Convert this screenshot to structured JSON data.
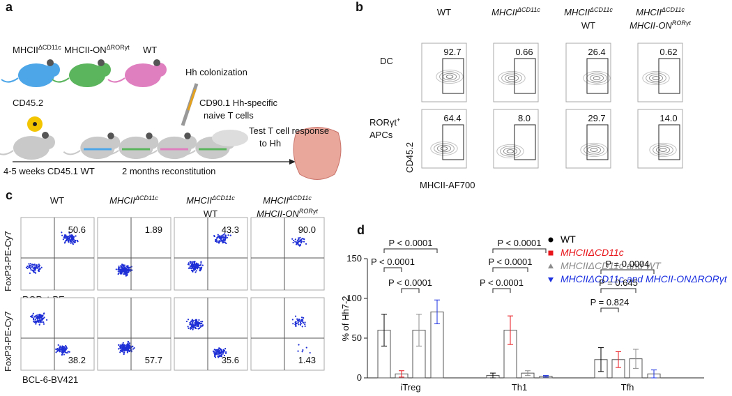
{
  "panels": {
    "a": {
      "label": "a",
      "mice": [
        [
          [
            {
              "text": "MHCII"
            },
            {
              "text": "ΔCD11c",
              "sup": true
            }
          ]
        ],
        [
          [
            {
              "text": "MHCII-ON"
            },
            {
              "text": "ΔRORγt",
              "sup": true
            }
          ]
        ],
        [
          [
            {
              "text": "WT"
            }
          ]
        ]
      ],
      "donor": "CD45.2",
      "colonization": "Hh colonization",
      "tcells": [
        "CD90.1  Hh-specific",
        "naive T cells"
      ],
      "test": [
        "Test  T cell response",
        "to Hh"
      ],
      "recipient": "4-5 weeks CD45.1 WT",
      "reconstitution": "2 months reconstitution"
    },
    "b": {
      "label": "b",
      "columns": [
        [
          [
            {
              "text": "WT"
            }
          ]
        ],
        [
          [
            {
              "text": "MHCII",
              "italic": true
            },
            {
              "text": "ΔCD11c",
              "sup": true,
              "italic": true
            }
          ]
        ],
        [
          [
            {
              "text": "MHCII",
              "italic": true
            },
            {
              "text": "ΔCD11c",
              "sup": true,
              "italic": true
            }
          ],
          [
            {
              "text": "WT"
            }
          ]
        ],
        [
          [
            {
              "text": "MHCII",
              "italic": true
            },
            {
              "text": "ΔCD11c",
              "sup": true,
              "italic": true
            }
          ],
          [
            {
              "text": "MHCII-ON",
              "italic": true
            },
            {
              "text": "RORγt",
              "sup": true,
              "italic": true
            }
          ]
        ]
      ],
      "rows": [
        {
          "label": [
            [
              {
                "text": "DC"
              }
            ]
          ],
          "values": [
            "92.7",
            "0.66",
            "26.4",
            "0.62"
          ]
        },
        {
          "label": [
            [
              {
                "text": "RORγt"
              },
              {
                "text": "+",
                "sup": true
              }
            ],
            [
              {
                "text": "APCs"
              }
            ]
          ],
          "values": [
            "64.4",
            "8.0",
            "29.7",
            "14.0"
          ]
        }
      ],
      "ylabel": "CD45.2",
      "xlabel": "MHCII-AF700"
    },
    "c": {
      "label": "c",
      "columns": [
        [
          [
            {
              "text": "WT"
            }
          ]
        ],
        [
          [
            {
              "text": "MHCII",
              "italic": true
            },
            {
              "text": "ΔCD11c",
              "sup": true,
              "italic": true
            }
          ]
        ],
        [
          [
            {
              "text": "MHCII",
              "italic": true
            },
            {
              "text": "ΔCD11c",
              "sup": true,
              "italic": true
            }
          ],
          [
            {
              "text": "WT"
            }
          ]
        ],
        [
          [
            {
              "text": "MHCII",
              "italic": true
            },
            {
              "text": "ΔCD11c",
              "sup": true,
              "italic": true
            }
          ],
          [
            {
              "text": "MHCII-ON",
              "italic": true
            },
            {
              "text": "RORγt",
              "sup": true,
              "italic": true
            }
          ]
        ]
      ],
      "rows": [
        {
          "ylabel": "FoxP3-PE-Cy7",
          "xlabel": "RORγt-PE",
          "values": [
            "50.6",
            "1.89",
            "43.3",
            "90.0"
          ]
        },
        {
          "ylabel": "FoxP3-PE-Cy7",
          "xlabel": "BCL-6-BV421",
          "values": [
            "38.2",
            "57.7",
            "35.6",
            "1.43"
          ]
        }
      ]
    },
    "d": {
      "label": "d"
    }
  },
  "chart_data": {
    "type": "bar",
    "ylabel": "% of Hh7-2",
    "categories": [
      "iTreg",
      "Th1",
      "Tfh"
    ],
    "series": [
      {
        "name": "WT",
        "color": "#000000",
        "values": [
          60,
          3,
          23
        ],
        "errors": [
          20,
          3,
          15
        ]
      },
      {
        "name": "MHCIIΔCD11c",
        "color": "#e8161b",
        "values": [
          5,
          60,
          23
        ],
        "errors": [
          4,
          18,
          10
        ]
      },
      {
        "name": "MHCIIΔCD11c and WT",
        "color": "#8c8c8c",
        "values": [
          60,
          6,
          24
        ],
        "errors": [
          20,
          3,
          12
        ]
      },
      {
        "name": "MHCIIΔCD11c and MHCII-ONΔRORγt",
        "color": "#1a2fe0",
        "values": [
          83,
          2,
          5
        ],
        "errors": [
          15,
          1,
          5
        ]
      }
    ],
    "ylim": [
      0,
      150
    ],
    "yticks": [
      0,
      50,
      100,
      150
    ],
    "annotations": [
      "P < 0.0001",
      "P < 0.0001",
      "P < 0.0001",
      "P < 0.0001",
      "P < 0.0001",
      "P < 0.0001",
      "P = 0.0004",
      "P = 0.645",
      "P = 0.824"
    ]
  }
}
